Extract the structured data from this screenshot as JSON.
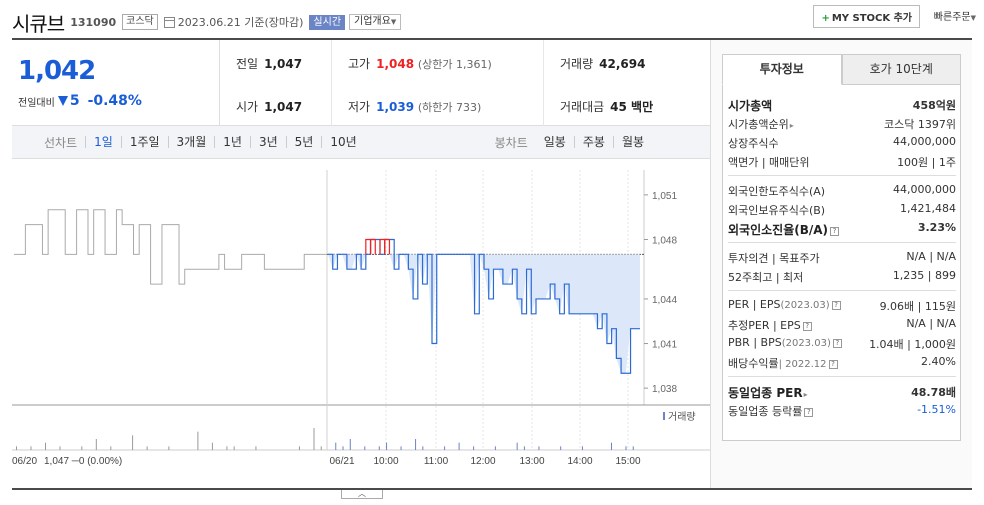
{
  "header": {
    "name": "시큐브",
    "code": "131090",
    "market": "코스닥",
    "date": "2023.06.21",
    "date_suffix": "기준(장마감)",
    "live": "실시간",
    "company_overview": "기업개요",
    "mystock": "MY STOCK 추가",
    "quick_order": "빠른주문"
  },
  "price": {
    "current": "1,042",
    "diff_label": "전일대비",
    "diff": "5",
    "pct": "-0.48%"
  },
  "stats": {
    "prev_label": "전일",
    "prev": "1,047",
    "open_label": "시가",
    "open": "1,047",
    "high_label": "고가",
    "high": "1,048",
    "upper_limit": "(상한가 1,361)",
    "low_label": "저가",
    "low": "1,039",
    "lower_limit": "(하한가 733)",
    "volume_label": "거래량",
    "volume": "42,694",
    "amount_label": "거래대금",
    "amount": "45 백만"
  },
  "tabs": {
    "line_label": "선차트",
    "line": [
      "1일",
      "1주일",
      "3개월",
      "1년",
      "3년",
      "5년",
      "10년"
    ],
    "candle_label": "봉차트",
    "candle": [
      "일봉",
      "주봉",
      "월봉"
    ]
  },
  "chart_data": {
    "type": "line",
    "ylim": [
      1037,
      1052
    ],
    "y_ticks": [
      "1,051",
      "1,048",
      "1,044",
      "1,041",
      "1,038"
    ],
    "y_tick_values": [
      1051,
      1048,
      1044,
      1041,
      1038
    ],
    "x_ticks": [
      "06/20",
      "06/21",
      "10:00",
      "11:00",
      "12:00",
      "13:00",
      "14:00",
      "15:00"
    ],
    "prev_close": 1047,
    "prev_day_summary": "06/20 1,047 ─0 (0.00%)",
    "volume_label": "거래량",
    "series": [
      {
        "values": [
          1047,
          1047,
          1049,
          1049,
          1049,
          1047,
          1050,
          1050,
          1050,
          1047,
          1047,
          1050,
          1050,
          1047,
          1050,
          1050,
          1047,
          1047,
          1050,
          1049,
          1049,
          1047,
          1049,
          1049,
          1045,
          1045,
          1049,
          1049,
          1049,
          1045,
          1046,
          1046,
          1046,
          1046,
          1046,
          1046,
          1047,
          1046,
          1046,
          1046,
          1047,
          1047,
          1047,
          1047,
          1046,
          1046,
          1046,
          1046,
          1046,
          1046,
          1046,
          1047,
          1047,
          1047,
          1047,
          1047
        ],
        "color": "#aaaaaa"
      },
      {
        "values": [
          1047,
          1046,
          1047,
          1047,
          1046,
          1046,
          1047,
          1046,
          1047,
          1048,
          1048,
          1047,
          1048,
          1048,
          1046,
          1047,
          1047,
          1046,
          1044,
          1047,
          1045,
          1047,
          1041,
          1047,
          1047,
          1047,
          1047,
          1047,
          1047,
          1047,
          1047,
          1043,
          1047,
          1046,
          1044,
          1046,
          1046,
          1045,
          1045,
          1046,
          1044,
          1043,
          1046,
          1043,
          1044,
          1044,
          1044,
          1045,
          1044,
          1043,
          1045,
          1043,
          1043,
          1043,
          1043,
          1043,
          1043,
          1042,
          1043,
          1041,
          1042,
          1040,
          1039,
          1039,
          1042,
          1042,
          1042
        ],
        "color": "#2a6ad6"
      }
    ],
    "volume": [
      1,
      0,
      1,
      0,
      2,
      0,
      1,
      0,
      0,
      1,
      0,
      3,
      0,
      1,
      0,
      0,
      4,
      0,
      1,
      0,
      0,
      1,
      0,
      0,
      0,
      5,
      0,
      2,
      0,
      1,
      1,
      0,
      0,
      1,
      0,
      0,
      0,
      0,
      0,
      1,
      0,
      6,
      1,
      0,
      2,
      1,
      3,
      0,
      1,
      0,
      1,
      2,
      0,
      1,
      0,
      3,
      1,
      0,
      0,
      1,
      0,
      2,
      0,
      1,
      0,
      0,
      1,
      0,
      0,
      2,
      1,
      0,
      1,
      0,
      0,
      1,
      0,
      0,
      1,
      0,
      0,
      0,
      2,
      0,
      1,
      1,
      0
    ]
  },
  "side": {
    "tab_invest": "투자정보",
    "tab_quote": "호가 10단계",
    "rows1": [
      {
        "k": "시가총액",
        "v": "458억원",
        "kb": true,
        "vb": true
      },
      {
        "k": "시가총액순위",
        "v": "코스닥 1397위",
        "arrow": true
      },
      {
        "k": "상장주식수",
        "v": "44,000,000"
      },
      {
        "k": "액면가 | 매매단위",
        "v": "100원 | 1주"
      }
    ],
    "rows2": [
      {
        "k": "외국인한도주식수(A)",
        "v": "44,000,000"
      },
      {
        "k": "외국인보유주식수(B)",
        "v": "1,421,484"
      },
      {
        "k": "외국인소진율(B/A)",
        "v": "3.23%",
        "kb": true,
        "vb": true,
        "q": true
      }
    ],
    "rows3": [
      {
        "k": "투자의견 | 목표주가",
        "v": "N/A | N/A"
      },
      {
        "k": "52주최고 | 최저",
        "v": "1,235 | 899"
      }
    ],
    "rows4": [
      {
        "k": "PER | EPS",
        "kg": "(2023.03)",
        "v": "9.06배 | 115원",
        "q": true
      },
      {
        "k": "추정PER | EPS",
        "v": "N/A | N/A",
        "q": true
      },
      {
        "k": "PBR | BPS",
        "kg": "(2023.03)",
        "v": "1.04배 | 1,000원",
        "q": true
      },
      {
        "k": "배당수익률",
        "kg": "| 2022.12",
        "v": "2.40%",
        "q": true
      }
    ],
    "rows5": [
      {
        "k": "동일업종 PER",
        "v": "48.78배",
        "kb": true,
        "vb": true,
        "arrow": true
      },
      {
        "k": "동일업종 등락률",
        "v": "-1.51%",
        "blue": true,
        "q": true
      }
    ]
  }
}
